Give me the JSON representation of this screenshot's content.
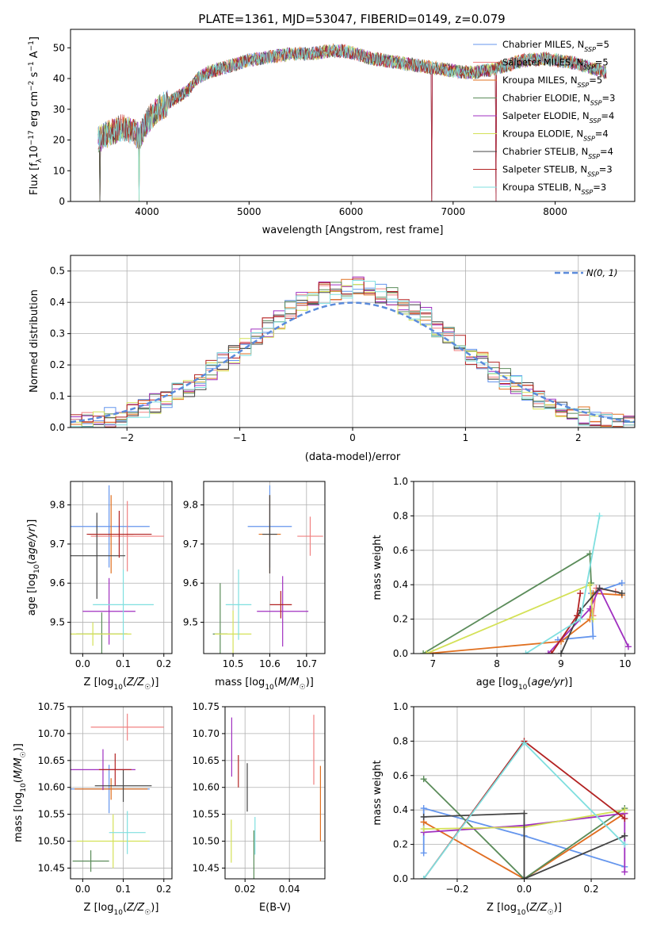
{
  "figure": {
    "title": "PLATE=1361, MJD=53047, FIBERID=0149, z=0.079"
  },
  "chart_data": [
    {
      "id": "spectrum",
      "type": "line",
      "title": "PLATE=1361, MJD=53047, FIBERID=0149, z=0.079",
      "xlabel": "wavelength [Angstrom, rest frame]",
      "ylabel": "Flux [f_λ 10^-17 erg cm^-2 s^-1 A^-1]",
      "xlim": [
        3250,
        8780
      ],
      "ylim": [
        0,
        56
      ],
      "xticks": [
        4000,
        5000,
        6000,
        7000,
        8000
      ],
      "yticks": [
        0,
        10,
        20,
        30,
        40,
        50
      ],
      "grid": false,
      "legend_position": "top-right",
      "continuum": {
        "x": [
          3520,
          3620,
          3750,
          3850,
          3930,
          4000,
          4100,
          4200,
          4300,
          4400,
          4500,
          4600,
          4700,
          4800,
          4900,
          5000,
          5100,
          5200,
          5300,
          5400,
          5500,
          5600,
          5700,
          5800,
          5900,
          6000,
          6100,
          6200,
          6300,
          6400,
          6500,
          6600,
          6700,
          6800,
          6900,
          7000,
          7100,
          7200,
          7300,
          7400,
          7500,
          7600,
          7700,
          7800,
          7900,
          8000,
          8100,
          8200,
          8300,
          8400,
          8500
        ],
        "y": [
          20,
          22,
          24,
          23,
          21,
          26,
          30,
          32,
          34,
          36,
          40,
          42,
          43,
          44,
          45,
          46,
          46.5,
          47,
          47.5,
          48,
          48,
          48,
          48.5,
          49,
          49,
          48.5,
          47.5,
          46.5,
          46,
          45.5,
          45,
          44.5,
          44,
          43.5,
          43,
          42.5,
          42,
          42,
          42.5,
          43,
          44,
          45,
          46,
          46,
          46.5,
          46,
          45.5,
          45,
          44,
          43,
          42
        ]
      },
      "dips": [
        {
          "x": 3540,
          "y": 0
        },
        {
          "x": 3920,
          "y": 0
        },
        {
          "x": 6790,
          "y": 0
        },
        {
          "x": 7420,
          "y": 0
        }
      ],
      "series": [
        {
          "name": "Chabrier MILES, N_SSP=5",
          "label_main": "Chabrier MILES, N",
          "label_sub": "SSP",
          "label_tail": "=5",
          "color": "#6495ed"
        },
        {
          "name": "Salpeter MILES, N_SSP=5",
          "label_main": "Salpeter MILES, N",
          "label_sub": "SSP",
          "label_tail": "=5",
          "color": "#f08080"
        },
        {
          "name": "Kroupa MILES, N_SSP=5",
          "label_main": "Kroupa MILES, N",
          "label_sub": "SSP",
          "label_tail": "=5",
          "color": "#e07020"
        },
        {
          "name": "Chabrier ELODIE, N_SSP=3",
          "label_main": "Chabrier ELODIE, N",
          "label_sub": "SSP",
          "label_tail": "=3",
          "color": "#5b8c5a"
        },
        {
          "name": "Salpeter ELODIE, N_SSP=4",
          "label_main": "Salpeter ELODIE, N",
          "label_sub": "SSP",
          "label_tail": "=4",
          "color": "#a030c0"
        },
        {
          "name": "Kroupa ELODIE, N_SSP=4",
          "label_main": "Kroupa ELODIE, N",
          "label_sub": "SSP",
          "label_tail": "=4",
          "color": "#d4e157"
        },
        {
          "name": "Chabrier STELIB, N_SSP=4",
          "label_main": "Chabrier STELIB, N",
          "label_sub": "SSP",
          "label_tail": "=4",
          "color": "#444444"
        },
        {
          "name": "Salpeter STELIB, N_SSP=3",
          "label_main": "Salpeter STELIB, N",
          "label_sub": "SSP",
          "label_tail": "=3",
          "color": "#b22222"
        },
        {
          "name": "Kroupa STELIB, N_SSP=3",
          "label_main": "Kroupa STELIB, N",
          "label_sub": "SSP",
          "label_tail": "=3",
          "color": "#7fdfdf"
        }
      ]
    },
    {
      "id": "residuals",
      "type": "line",
      "xlabel": "(data-model)/error",
      "ylabel": "Normed distribution",
      "xlim": [
        -2.5,
        2.5
      ],
      "ylim": [
        0,
        0.55
      ],
      "xticks": [
        -2,
        -1,
        0,
        1,
        2
      ],
      "yticks": [
        0.0,
        0.1,
        0.2,
        0.3,
        0.4,
        0.5
      ],
      "grid": true,
      "legend_position": "top-right",
      "legend_label": "N(0, 1)",
      "gaussian": {
        "mu": 0,
        "sigma": 1,
        "color": "#5b8bdb"
      },
      "histograms": {
        "bin_edges_start": -2.5,
        "bin_width": 0.1,
        "bins": 50,
        "colors": [
          "#6495ed",
          "#f08080",
          "#e07020",
          "#5b8c5a",
          "#a030c0",
          "#d4e157",
          "#444444",
          "#b22222",
          "#7fdfdf"
        ]
      }
    },
    {
      "id": "age_vs_Z",
      "type": "scatter",
      "xlabel": "Z [log10(Z/Z☉)]",
      "ylabel": "age [log10(age/yr)]",
      "xlim": [
        -0.03,
        0.22
      ],
      "ylim": [
        9.42,
        9.86
      ],
      "xticks": [
        0.0,
        0.1,
        0.2
      ],
      "yticks": [
        9.5,
        9.6,
        9.7,
        9.8
      ],
      "grid": true,
      "points": [
        {
          "x": 0.065,
          "y": 9.745,
          "xerr": 0.1,
          "yerr": 0.105,
          "color": "#6495ed"
        },
        {
          "x": 0.11,
          "y": 9.72,
          "xerr": 0.09,
          "yerr": 0.09,
          "color": "#f08080"
        },
        {
          "x": 0.07,
          "y": 9.725,
          "xerr": 0.055,
          "yerr": 0.1,
          "color": "#e07020"
        },
        {
          "x": 0.047,
          "y": 9.47,
          "xerr": 0.063,
          "yerr": 0.055,
          "color": "#5b8c5a"
        },
        {
          "x": 0.065,
          "y": 9.528,
          "xerr": 0.065,
          "yerr": 0.085,
          "color": "#a030c0"
        },
        {
          "x": 0.025,
          "y": 9.47,
          "xerr": 0.095,
          "yerr": 0.03,
          "color": "#d4e157"
        },
        {
          "x": 0.035,
          "y": 9.67,
          "xerr": 0.07,
          "yerr": 0.11,
          "color": "#444444"
        },
        {
          "x": 0.09,
          "y": 9.725,
          "xerr": 0.08,
          "yerr": 0.06,
          "color": "#b22222"
        },
        {
          "x": 0.1,
          "y": 9.545,
          "xerr": 0.075,
          "yerr": 0.09,
          "color": "#7fdfdf"
        }
      ]
    },
    {
      "id": "age_vs_mass",
      "type": "scatter",
      "xlabel": "mass [log10(M/M☉)]",
      "ylabel": "",
      "xlim": [
        10.42,
        10.75
      ],
      "ylim": [
        9.42,
        9.86
      ],
      "xticks": [
        10.5,
        10.6,
        10.7
      ],
      "yticks": [
        9.5,
        9.6,
        9.7,
        9.8
      ],
      "grid": true,
      "points": [
        {
          "x": 10.6,
          "y": 9.745,
          "xerr": 0.06,
          "yerr": 0.105,
          "color": "#6495ed"
        },
        {
          "x": 10.71,
          "y": 9.72,
          "xerr": 0.035,
          "yerr": 0.05,
          "color": "#f08080"
        },
        {
          "x": 10.6,
          "y": 9.725,
          "xerr": 0.03,
          "yerr": 0.1,
          "color": "#e07020"
        },
        {
          "x": 10.465,
          "y": 9.47,
          "xerr": 0.02,
          "yerr": 0.13,
          "color": "#5b8c5a"
        },
        {
          "x": 10.635,
          "y": 9.528,
          "xerr": 0.07,
          "yerr": 0.09,
          "color": "#a030c0"
        },
        {
          "x": 10.5,
          "y": 9.47,
          "xerr": 0.05,
          "yerr": 0.06,
          "color": "#d4e157"
        },
        {
          "x": 10.6,
          "y": 9.725,
          "xerr": 0.02,
          "yerr": 0.1,
          "color": "#444444"
        },
        {
          "x": 10.63,
          "y": 9.545,
          "xerr": 0.03,
          "yerr": 0.035,
          "color": "#b22222"
        },
        {
          "x": 10.515,
          "y": 9.545,
          "xerr": 0.035,
          "yerr": 0.09,
          "color": "#7fdfdf"
        }
      ]
    },
    {
      "id": "weights_vs_age",
      "type": "line",
      "xlabel": "age [log10(age/yr)]",
      "ylabel": "mass weight",
      "xlim": [
        6.7,
        10.15
      ],
      "ylim": [
        0,
        1
      ],
      "xticks": [
        7,
        8,
        9,
        10
      ],
      "yticks": [
        0.0,
        0.2,
        0.4,
        0.6,
        0.8,
        1.0
      ],
      "grid": true,
      "series": [
        {
          "color": "#6495ed",
          "x": [
            8.95,
            9.5,
            9.47,
            9.95
          ],
          "y": [
            0.08,
            0.1,
            0.35,
            0.41
          ]
        },
        {
          "color": "#f08080",
          "x": [
            9.5,
            9.55,
            9.85
          ],
          "y": [
            0.22,
            0.38,
            0.36
          ]
        },
        {
          "color": "#e07020",
          "x": [
            6.9,
            9.0,
            9.45,
            9.5,
            9.95
          ],
          "y": [
            0.0,
            0.07,
            0.2,
            0.35,
            0.34
          ]
        },
        {
          "color": "#5b8c5a",
          "x": [
            6.85,
            9.45,
            9.47
          ],
          "y": [
            0.0,
            0.58,
            0.41
          ]
        },
        {
          "color": "#a030c0",
          "x": [
            8.8,
            9.45,
            9.6,
            10.05
          ],
          "y": [
            0.0,
            0.26,
            0.38,
            0.04
          ]
        },
        {
          "color": "#d4e157",
          "x": [
            6.9,
            9.45,
            9.5
          ],
          "y": [
            0.0,
            0.4,
            0.2
          ]
        },
        {
          "color": "#444444",
          "x": [
            9.0,
            9.3,
            9.6,
            9.95
          ],
          "y": [
            0.0,
            0.25,
            0.38,
            0.35
          ]
        },
        {
          "color": "#b22222",
          "x": [
            8.85,
            9.25,
            9.3
          ],
          "y": [
            0.0,
            0.22,
            0.35
          ]
        },
        {
          "color": "#7fdfdf",
          "x": [
            8.45,
            9.3,
            9.6
          ],
          "y": [
            0.0,
            0.2,
            0.8
          ]
        }
      ]
    },
    {
      "id": "mass_vs_Z",
      "type": "scatter",
      "xlabel": "Z [log10(Z/Z☉)]",
      "ylabel": "mass [log10(M/M☉)]",
      "xlim": [
        -0.03,
        0.22
      ],
      "ylim": [
        10.43,
        10.75
      ],
      "xticks": [
        0.0,
        0.1,
        0.2
      ],
      "yticks": [
        10.45,
        10.5,
        10.55,
        10.6,
        10.65,
        10.7,
        10.75
      ],
      "grid": true,
      "points": [
        {
          "x": 0.065,
          "y": 10.597,
          "xerr": 0.1,
          "yerr": 0.045,
          "color": "#6495ed"
        },
        {
          "x": 0.11,
          "y": 10.712,
          "xerr": 0.09,
          "yerr": 0.025,
          "color": "#f08080"
        },
        {
          "x": 0.07,
          "y": 10.597,
          "xerr": 0.09,
          "yerr": 0.02,
          "color": "#e07020"
        },
        {
          "x": 0.02,
          "y": 10.463,
          "xerr": 0.045,
          "yerr": 0.02,
          "color": "#5b8c5a"
        },
        {
          "x": 0.05,
          "y": 10.633,
          "xerr": 0.08,
          "yerr": 0.038,
          "color": "#a030c0"
        },
        {
          "x": 0.075,
          "y": 10.5,
          "xerr": 0.09,
          "yerr": 0.05,
          "color": "#d4e157"
        },
        {
          "x": 0.1,
          "y": 10.603,
          "xerr": 0.07,
          "yerr": 0.03,
          "color": "#444444"
        },
        {
          "x": 0.08,
          "y": 10.633,
          "xerr": 0.04,
          "yerr": 0.03,
          "color": "#b22222"
        },
        {
          "x": 0.11,
          "y": 10.516,
          "xerr": 0.045,
          "yerr": 0.04,
          "color": "#7fdfdf"
        }
      ]
    },
    {
      "id": "mass_vs_ebv",
      "type": "scatter",
      "xlabel": "E(B-V)",
      "ylabel": "",
      "xlim": [
        0.011,
        0.056
      ],
      "ylim": [
        10.43,
        10.75
      ],
      "xticks": [
        0.02,
        0.04
      ],
      "yticks": [
        10.45,
        10.5,
        10.55,
        10.6,
        10.65,
        10.7,
        10.75
      ],
      "grid": true,
      "points": [
        {
          "x": 0.051,
          "y": 10.67,
          "xerr": 0.0,
          "yerr": 0.065,
          "color": "#f08080"
        },
        {
          "x": 0.054,
          "y": 10.57,
          "xerr": 0.0,
          "yerr": 0.07,
          "color": "#e07020"
        },
        {
          "x": 0.024,
          "y": 10.47,
          "xerr": 0.0,
          "yerr": 0.05,
          "color": "#5b8c5a"
        },
        {
          "x": 0.014,
          "y": 10.675,
          "xerr": 0.0,
          "yerr": 0.055,
          "color": "#a030c0"
        },
        {
          "x": 0.0138,
          "y": 10.5,
          "xerr": 0.0,
          "yerr": 0.04,
          "color": "#d4e157"
        },
        {
          "x": 0.021,
          "y": 10.6,
          "xerr": 0.0,
          "yerr": 0.045,
          "color": "#444444"
        },
        {
          "x": 0.017,
          "y": 10.63,
          "xerr": 0.0,
          "yerr": 0.03,
          "color": "#b22222"
        },
        {
          "x": 0.0245,
          "y": 10.51,
          "xerr": 0.0,
          "yerr": 0.035,
          "color": "#7fdfdf"
        }
      ]
    },
    {
      "id": "weights_vs_Z",
      "type": "line",
      "xlabel": "Z [log10(Z/Z☉)]",
      "ylabel": "mass weight",
      "xlim": [
        -0.33,
        0.33
      ],
      "ylim": [
        0,
        1
      ],
      "xticks": [
        -0.2,
        0.0,
        0.2
      ],
      "yticks": [
        0.0,
        0.2,
        0.4,
        0.6,
        0.8,
        1.0
      ],
      "grid": true,
      "series": [
        {
          "color": "#6495ed",
          "x": [
            -0.3,
            -0.3,
            0.0,
            0.3
          ],
          "y": [
            0.15,
            0.41,
            0.25,
            0.07
          ]
        },
        {
          "color": "#f08080",
          "x": [
            -0.3,
            0.0,
            0.3
          ],
          "y": [
            0.33,
            0.0,
            0.38
          ]
        },
        {
          "color": "#e07020",
          "x": [
            -0.3,
            0.0,
            0.3
          ],
          "y": [
            0.33,
            0.0,
            0.38
          ]
        },
        {
          "color": "#5b8c5a",
          "x": [
            -0.3,
            0.0,
            0.3
          ],
          "y": [
            0.58,
            0.0,
            0.41
          ]
        },
        {
          "color": "#a030c0",
          "x": [
            -0.3,
            0.0,
            0.3,
            0.3
          ],
          "y": [
            0.27,
            0.31,
            0.38,
            0.04
          ]
        },
        {
          "color": "#d4e157",
          "x": [
            -0.3,
            0.0,
            0.3
          ],
          "y": [
            0.29,
            0.3,
            0.4
          ]
        },
        {
          "color": "#444444",
          "x": [
            -0.3,
            0.0,
            0.0,
            0.3
          ],
          "y": [
            0.36,
            0.38,
            0.0,
            0.25
          ]
        },
        {
          "color": "#b22222",
          "x": [
            -0.3,
            0.0,
            0.3
          ],
          "y": [
            0.0,
            0.8,
            0.35
          ]
        },
        {
          "color": "#7fdfdf",
          "x": [
            -0.3,
            0.0,
            0.3
          ],
          "y": [
            0.0,
            0.79,
            0.2
          ]
        }
      ]
    }
  ]
}
